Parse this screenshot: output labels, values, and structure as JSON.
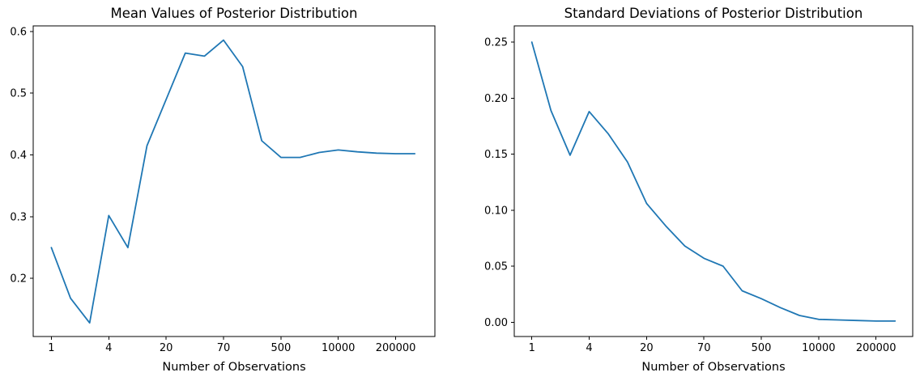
{
  "figure": {
    "background": "#ffffff",
    "text_color": "#000000"
  },
  "chart_data": [
    {
      "type": "line",
      "title": "Mean Values of Posterior Distribution",
      "xlabel": "Number of Observations",
      "ylabel": "",
      "x_axis_note": "20 evenly spaced sample points (index 0-19); tick labels give number of observations at indices 0,3,6,9,12,15,18",
      "x": [
        0,
        1,
        2,
        3,
        4,
        5,
        6,
        7,
        8,
        9,
        10,
        11,
        12,
        13,
        14,
        15,
        16,
        17,
        18,
        19
      ],
      "values": [
        0.25,
        0.168,
        0.128,
        0.302,
        0.25,
        0.415,
        0.49,
        0.565,
        0.56,
        0.586,
        0.543,
        0.423,
        0.396,
        0.396,
        0.404,
        0.408,
        0.405,
        0.403,
        0.402,
        0.402
      ],
      "x_ticks": [
        {
          "index": 0,
          "label": "1"
        },
        {
          "index": 3,
          "label": "4"
        },
        {
          "index": 6,
          "label": "20"
        },
        {
          "index": 9,
          "label": "70"
        },
        {
          "index": 12,
          "label": "500"
        },
        {
          "index": 15,
          "label": "10000"
        },
        {
          "index": 18,
          "label": "200000"
        }
      ],
      "y_ticks": [
        {
          "value": 0.2,
          "label": "0.2"
        },
        {
          "value": 0.3,
          "label": "0.3"
        },
        {
          "value": 0.4,
          "label": "0.4"
        },
        {
          "value": 0.5,
          "label": "0.5"
        },
        {
          "value": 0.6,
          "label": "0.6"
        }
      ],
      "xlim": [
        -0.95,
        20.05
      ],
      "ylim": [
        0.106,
        0.609
      ],
      "line_color": "#1f77b4",
      "grid": false,
      "legend": null
    },
    {
      "type": "line",
      "title": "Standard Deviations of Posterior Distribution",
      "xlabel": "Number of Observations",
      "ylabel": "",
      "x_axis_note": "20 evenly spaced sample points (index 0-19); tick labels give number of observations at indices 0,3,6,9,12,15,18",
      "x": [
        0,
        1,
        2,
        3,
        4,
        5,
        6,
        7,
        8,
        9,
        10,
        11,
        12,
        13,
        14,
        15,
        16,
        17,
        18,
        19
      ],
      "values": [
        0.25,
        0.189,
        0.149,
        0.188,
        0.168,
        0.143,
        0.106,
        0.086,
        0.068,
        0.057,
        0.05,
        0.028,
        0.021,
        0.013,
        0.006,
        0.0025,
        0.002,
        0.0015,
        0.001,
        0.001
      ],
      "x_ticks": [
        {
          "index": 0,
          "label": "1"
        },
        {
          "index": 3,
          "label": "4"
        },
        {
          "index": 6,
          "label": "20"
        },
        {
          "index": 9,
          "label": "70"
        },
        {
          "index": 12,
          "label": "500"
        },
        {
          "index": 15,
          "label": "10000"
        },
        {
          "index": 18,
          "label": "200000"
        }
      ],
      "y_ticks": [
        {
          "value": 0.0,
          "label": "0.00"
        },
        {
          "value": 0.05,
          "label": "0.05"
        },
        {
          "value": 0.1,
          "label": "0.10"
        },
        {
          "value": 0.15,
          "label": "0.15"
        },
        {
          "value": 0.2,
          "label": "0.20"
        },
        {
          "value": 0.25,
          "label": "0.25"
        }
      ],
      "xlim": [
        -0.92,
        19.92
      ],
      "ylim": [
        -0.0128,
        0.2645
      ],
      "line_color": "#1f77b4",
      "grid": false,
      "legend": null
    }
  ]
}
